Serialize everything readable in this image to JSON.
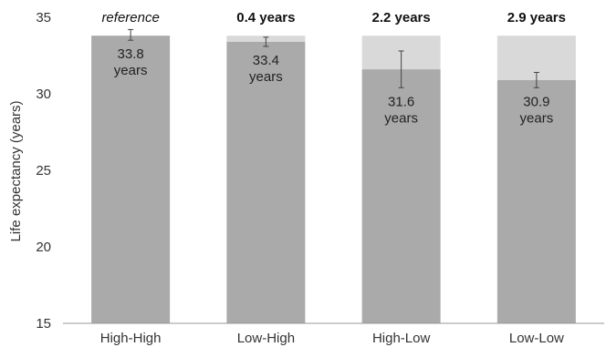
{
  "chart_data": {
    "type": "bar",
    "categories": [
      "High-High",
      "Low-High",
      "High-Low",
      "Low-Low"
    ],
    "values": [
      33.8,
      33.4,
      31.6,
      30.9
    ],
    "reference_value": 33.8,
    "value_labels": [
      [
        "33.8",
        "years"
      ],
      [
        "33.4",
        "years"
      ],
      [
        "31.6",
        "years"
      ],
      [
        "30.9",
        "years"
      ]
    ],
    "top_labels": [
      "reference",
      "0.4 years",
      "2.2 years",
      "2.9 years"
    ],
    "error_bars": [
      [
        33.5,
        34.2
      ],
      [
        33.1,
        33.7
      ],
      [
        30.4,
        32.8
      ],
      [
        30.4,
        31.4
      ]
    ],
    "ylabel": "Life expectancy (years)",
    "xlabel": "",
    "ylim": [
      15,
      35
    ],
    "yticks": [
      "15",
      "20",
      "25",
      "30",
      "35"
    ],
    "grid": false,
    "colors": {
      "bar": "#aaaaaa",
      "gap": "#d9d9d9",
      "error_bar": "#444444",
      "axis": "#999999"
    }
  }
}
